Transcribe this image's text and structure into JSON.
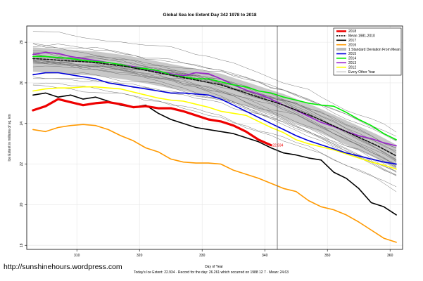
{
  "chart_data": {
    "type": "line",
    "title": "Global Sea Ice Extent Day 342 1978 to 2018",
    "xlabel": "Day of Year",
    "ylabel": "Ice Extent in millions of sq. km",
    "xlim": [
      302,
      362
    ],
    "ylim": [
      17.8,
      28.8
    ],
    "x_ticks": [
      310,
      320,
      330,
      340,
      350,
      360
    ],
    "y_ticks": [
      18,
      20,
      22,
      24,
      26,
      28
    ],
    "grid": true,
    "legend_position": "top-right",
    "marker_day": 342,
    "annotation": {
      "text": "22.934",
      "x": 341,
      "y": 22.93
    },
    "series": [
      {
        "name": "2018",
        "color": "#ee0000",
        "width": 3.2,
        "x": [
          303,
          305,
          307,
          309,
          311,
          313,
          315,
          317,
          319,
          321,
          323,
          325,
          327,
          329,
          331,
          333,
          335,
          337,
          339,
          341
        ],
        "y": [
          24.65,
          24.85,
          25.2,
          25.05,
          24.9,
          25.0,
          25.05,
          24.95,
          24.8,
          24.85,
          24.75,
          24.75,
          24.6,
          24.4,
          24.2,
          24.1,
          23.9,
          23.6,
          23.2,
          22.93
        ]
      },
      {
        "name": "Mean 1981-2010",
        "color": "#111111",
        "width": 1.6,
        "dash": "3,2",
        "x": [
          303,
          308,
          313,
          318,
          323,
          328,
          333,
          338,
          343,
          348,
          353,
          358,
          361
        ],
        "y": [
          27.2,
          27.1,
          27.0,
          26.8,
          26.5,
          26.2,
          25.9,
          25.4,
          24.9,
          24.3,
          23.6,
          22.9,
          22.4
        ]
      },
      {
        "name": "2017",
        "color": "#000000",
        "width": 1.6,
        "x": [
          303,
          305,
          307,
          309,
          311,
          313,
          315,
          317,
          319,
          321,
          323,
          325,
          327,
          329,
          331,
          333,
          335,
          337,
          339,
          341,
          343,
          345,
          347,
          349,
          351,
          353,
          355,
          357,
          359,
          361
        ],
        "y": [
          25.4,
          25.5,
          25.3,
          25.4,
          25.2,
          25.3,
          25.1,
          24.9,
          24.8,
          24.9,
          24.5,
          24.2,
          24.0,
          23.8,
          23.7,
          23.6,
          23.5,
          23.3,
          23.1,
          22.8,
          22.55,
          22.45,
          22.3,
          22.2,
          21.6,
          21.3,
          20.8,
          20.1,
          19.9,
          19.5
        ]
      },
      {
        "name": "2016",
        "color": "#ff9900",
        "width": 1.6,
        "x": [
          303,
          305,
          307,
          309,
          311,
          313,
          315,
          317,
          319,
          321,
          323,
          325,
          327,
          329,
          331,
          333,
          335,
          337,
          339,
          341,
          343,
          345,
          347,
          349,
          351,
          353,
          355,
          357,
          359,
          361
        ],
        "y": [
          23.7,
          23.6,
          23.8,
          23.9,
          23.95,
          23.9,
          23.7,
          23.4,
          23.15,
          22.8,
          22.6,
          22.25,
          22.1,
          22.05,
          22.05,
          22.0,
          21.7,
          21.5,
          21.3,
          21.05,
          20.8,
          20.65,
          20.2,
          19.9,
          19.75,
          19.5,
          19.15,
          18.75,
          18.35,
          18.15
        ]
      },
      {
        "name": "1 Standard Deviation From Mean",
        "color": "#bbbbbb",
        "width": 0
      },
      {
        "name": "2015",
        "color": "#0000dd",
        "width": 1.6,
        "x": [
          303,
          305,
          307,
          309,
          311,
          313,
          315,
          317,
          319,
          321,
          323,
          325,
          327,
          329,
          331,
          333,
          335,
          337,
          339,
          341,
          343,
          345,
          347,
          349,
          351,
          353,
          355,
          357,
          359,
          361
        ],
        "y": [
          26.4,
          26.5,
          26.5,
          26.4,
          26.3,
          26.2,
          26.0,
          25.9,
          25.8,
          25.7,
          25.6,
          25.5,
          25.5,
          25.45,
          25.4,
          25.2,
          24.9,
          24.6,
          24.3,
          24.0,
          23.7,
          23.4,
          23.15,
          22.95,
          22.75,
          22.55,
          22.4,
          22.25,
          22.1,
          22.0
        ]
      },
      {
        "name": "2014",
        "color": "#00ee00",
        "width": 1.6,
        "x": [
          303,
          305,
          307,
          309,
          311,
          313,
          315,
          317,
          319,
          321,
          323,
          325,
          327,
          329,
          331,
          333,
          335,
          337,
          339,
          341,
          343,
          345,
          347,
          349,
          351,
          353,
          355,
          357,
          359,
          361
        ],
        "y": [
          27.3,
          27.3,
          27.25,
          27.2,
          27.1,
          27.05,
          27.0,
          26.9,
          26.75,
          26.7,
          26.6,
          26.4,
          26.3,
          26.2,
          26.2,
          26.05,
          25.9,
          25.8,
          25.6,
          25.5,
          25.3,
          25.15,
          25.0,
          24.9,
          24.85,
          24.55,
          24.2,
          23.9,
          23.5,
          23.2
        ]
      },
      {
        "name": "2013",
        "color": "#9922cc",
        "width": 1.6,
        "x": [
          303,
          305,
          307,
          309,
          311,
          313,
          315,
          317,
          319,
          321,
          323,
          325,
          327,
          329,
          331,
          333,
          335,
          337,
          339,
          341,
          343,
          345,
          347,
          349,
          351,
          353,
          355,
          357,
          359,
          361
        ],
        "y": [
          27.4,
          27.5,
          27.45,
          27.3,
          27.2,
          27.1,
          27.0,
          26.9,
          26.8,
          26.7,
          26.55,
          26.45,
          26.35,
          26.5,
          26.45,
          26.2,
          25.9,
          25.65,
          25.45,
          25.2,
          24.9,
          24.65,
          24.35,
          24.05,
          23.85,
          23.6,
          23.4,
          23.25,
          23.05,
          22.9
        ]
      },
      {
        "name": "2012",
        "color": "#ffff00",
        "width": 1.6,
        "x": [
          303,
          305,
          307,
          309,
          311,
          313,
          315,
          317,
          319,
          321,
          323,
          325,
          327,
          329,
          331,
          333,
          335,
          337,
          339,
          341,
          343,
          345,
          347,
          349,
          351,
          353,
          355,
          357,
          359,
          361
        ],
        "y": [
          25.6,
          25.7,
          25.75,
          25.75,
          25.8,
          25.8,
          25.75,
          25.7,
          25.55,
          25.4,
          25.25,
          25.15,
          25.1,
          24.95,
          24.8,
          24.6,
          24.5,
          24.4,
          24.1,
          23.8,
          23.55,
          23.2,
          23.0,
          22.85,
          22.7,
          22.5,
          22.3,
          22.1,
          21.95,
          21.75
        ]
      },
      {
        "name": "Every Other Year",
        "color": "#666666",
        "width": 0.5
      }
    ]
  },
  "footer": {
    "text": "Today's Ice Extent: 22.934  · Record for the day: 26.261 which occurred on 1988 12 7  · Mean: 24.63"
  },
  "watermark": "http://sunshinehours.wordpress.com",
  "colors": {
    "background": "#ffffff",
    "plot_border": "#000000",
    "marker_line": "#555555"
  }
}
